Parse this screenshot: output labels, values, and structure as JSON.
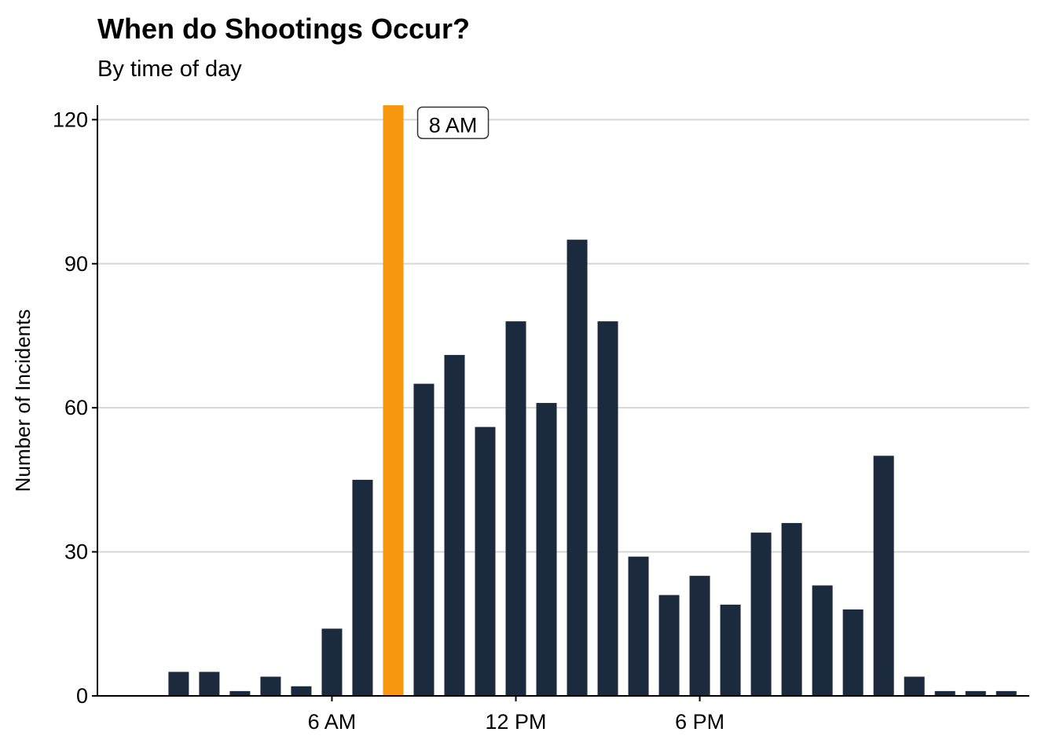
{
  "header": {
    "title": "When do Shootings Occur?",
    "subtitle": "By time of day"
  },
  "chart_data": {
    "type": "bar",
    "title": "When do Shootings Occur?",
    "subtitle": "By time of day",
    "xlabel": "",
    "ylabel": "Number of Incidents",
    "x": [
      0,
      1,
      2,
      3,
      4,
      5,
      6,
      7,
      8,
      9,
      10,
      11,
      12,
      13,
      14,
      15,
      16,
      17,
      18,
      19,
      20,
      21,
      22,
      23,
      24,
      25,
      26,
      27,
      28,
      29
    ],
    "values": [
      0,
      5,
      5,
      1,
      4,
      2,
      14,
      45,
      123,
      65,
      71,
      56,
      78,
      61,
      95,
      78,
      29,
      21,
      25,
      19,
      34,
      36,
      23,
      18,
      50,
      4,
      1,
      1,
      1,
      0
    ],
    "highlight_x": 8,
    "xlim": [
      -1.65,
      28.75
    ],
    "ylim": [
      0,
      123
    ],
    "yticks": [
      0,
      30,
      60,
      90,
      120
    ],
    "xticks": [
      {
        "value": 6,
        "label": "6 AM"
      },
      {
        "value": 12,
        "label": "12 PM"
      },
      {
        "value": 18,
        "label": "6 PM"
      }
    ],
    "annotation": {
      "x": 8,
      "y": 120,
      "text": "8 AM"
    },
    "grid": "horizontal",
    "colors": {
      "bar": "#1c2a3e",
      "highlight": "#f7960f",
      "grid": "#d6d6d6",
      "axis": "#000000"
    }
  }
}
